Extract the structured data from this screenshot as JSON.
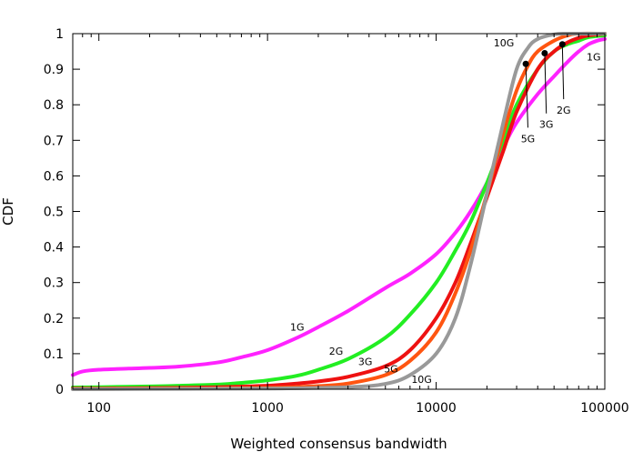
{
  "chart_data": {
    "type": "line",
    "xlabel": "Weighted consensus bandwidth",
    "ylabel": "CDF",
    "xscale": "log",
    "xlim": [
      70,
      100000
    ],
    "ylim": [
      0,
      1
    ],
    "x_ticks": [
      {
        "value": 100,
        "label": "100"
      },
      {
        "value": 1000,
        "label": "1000"
      },
      {
        "value": 10000,
        "label": "10000"
      },
      {
        "value": 100000,
        "label": "100000"
      }
    ],
    "y_ticks": [
      {
        "value": 0,
        "label": "0"
      },
      {
        "value": 0.1,
        "label": "0.1"
      },
      {
        "value": 0.2,
        "label": "0.2"
      },
      {
        "value": 0.3,
        "label": "0.3"
      },
      {
        "value": 0.4,
        "label": "0.4"
      },
      {
        "value": 0.5,
        "label": "0.5"
      },
      {
        "value": 0.6,
        "label": "0.6"
      },
      {
        "value": 0.7,
        "label": "0.7"
      },
      {
        "value": 0.8,
        "label": "0.8"
      },
      {
        "value": 0.9,
        "label": "0.9"
      },
      {
        "value": 1,
        "label": "1"
      }
    ],
    "grid": false,
    "series": [
      {
        "name": "1G",
        "color": "#ff22ff",
        "points": [
          [
            70,
            0.04
          ],
          [
            80,
            0.05
          ],
          [
            100,
            0.055
          ],
          [
            150,
            0.058
          ],
          [
            200,
            0.06
          ],
          [
            300,
            0.064
          ],
          [
            500,
            0.075
          ],
          [
            700,
            0.09
          ],
          [
            1000,
            0.11
          ],
          [
            1500,
            0.145
          ],
          [
            2000,
            0.175
          ],
          [
            3000,
            0.22
          ],
          [
            5000,
            0.285
          ],
          [
            7000,
            0.325
          ],
          [
            10000,
            0.38
          ],
          [
            13000,
            0.44
          ],
          [
            16000,
            0.5
          ],
          [
            20000,
            0.58
          ],
          [
            25000,
            0.68
          ],
          [
            30000,
            0.75
          ],
          [
            40000,
            0.83
          ],
          [
            50000,
            0.88
          ],
          [
            60000,
            0.92
          ],
          [
            70000,
            0.95
          ],
          [
            80000,
            0.97
          ],
          [
            90000,
            0.98
          ],
          [
            100000,
            0.985
          ]
        ]
      },
      {
        "name": "2G",
        "color": "#22ee22",
        "points": [
          [
            70,
            0.005
          ],
          [
            100,
            0.006
          ],
          [
            200,
            0.008
          ],
          [
            300,
            0.01
          ],
          [
            500,
            0.013
          ],
          [
            700,
            0.018
          ],
          [
            1000,
            0.025
          ],
          [
            1500,
            0.038
          ],
          [
            2000,
            0.055
          ],
          [
            3000,
            0.085
          ],
          [
            5000,
            0.145
          ],
          [
            7000,
            0.21
          ],
          [
            10000,
            0.3
          ],
          [
            13000,
            0.39
          ],
          [
            16000,
            0.47
          ],
          [
            20000,
            0.58
          ],
          [
            25000,
            0.7
          ],
          [
            30000,
            0.8
          ],
          [
            40000,
            0.9
          ],
          [
            50000,
            0.95
          ],
          [
            60000,
            0.97
          ],
          [
            70000,
            0.98
          ],
          [
            80000,
            0.99
          ],
          [
            100000,
            0.995
          ]
        ]
      },
      {
        "name": "3G",
        "color": "#ee1111",
        "points": [
          [
            70,
            0.002
          ],
          [
            100,
            0.002
          ],
          [
            200,
            0.003
          ],
          [
            500,
            0.006
          ],
          [
            1000,
            0.01
          ],
          [
            1500,
            0.016
          ],
          [
            2000,
            0.022
          ],
          [
            3000,
            0.035
          ],
          [
            5000,
            0.065
          ],
          [
            7000,
            0.11
          ],
          [
            10000,
            0.2
          ],
          [
            13000,
            0.3
          ],
          [
            16000,
            0.41
          ],
          [
            20000,
            0.54
          ],
          [
            25000,
            0.67
          ],
          [
            30000,
            0.78
          ],
          [
            40000,
            0.9
          ],
          [
            50000,
            0.95
          ],
          [
            60000,
            0.975
          ],
          [
            70000,
            0.988
          ],
          [
            80000,
            0.995
          ],
          [
            100000,
            1.0
          ]
        ]
      },
      {
        "name": "5G",
        "color": "#ff5511",
        "points": [
          [
            70,
            0.001
          ],
          [
            100,
            0.001
          ],
          [
            300,
            0.002
          ],
          [
            1000,
            0.004
          ],
          [
            2000,
            0.009
          ],
          [
            3000,
            0.016
          ],
          [
            5000,
            0.04
          ],
          [
            7000,
            0.08
          ],
          [
            10000,
            0.16
          ],
          [
            13000,
            0.27
          ],
          [
            16000,
            0.39
          ],
          [
            20000,
            0.55
          ],
          [
            25000,
            0.72
          ],
          [
            30000,
            0.84
          ],
          [
            35000,
            0.91
          ],
          [
            40000,
            0.95
          ],
          [
            50000,
            0.98
          ],
          [
            60000,
            0.995
          ],
          [
            70000,
            1.0
          ],
          [
            100000,
            1.0
          ]
        ]
      },
      {
        "name": "10G",
        "color": "#999999",
        "points": [
          [
            70,
            0.0
          ],
          [
            300,
            0.001
          ],
          [
            1000,
            0.002
          ],
          [
            3000,
            0.006
          ],
          [
            5000,
            0.015
          ],
          [
            7000,
            0.04
          ],
          [
            10000,
            0.1
          ],
          [
            13000,
            0.2
          ],
          [
            16000,
            0.35
          ],
          [
            20000,
            0.55
          ],
          [
            25000,
            0.75
          ],
          [
            30000,
            0.9
          ],
          [
            35000,
            0.96
          ],
          [
            40000,
            0.985
          ],
          [
            50000,
            0.998
          ],
          [
            60000,
            1.0
          ],
          [
            100000,
            1.0
          ]
        ]
      }
    ],
    "markers": [
      {
        "x": 34000,
        "y": 0.915
      },
      {
        "x": 44000,
        "y": 0.945
      },
      {
        "x": 56000,
        "y": 0.97
      }
    ],
    "annotations": [
      {
        "text": "10G",
        "x": 29000,
        "y": 0.975,
        "anchor": "end"
      },
      {
        "text": "1G",
        "x": 78000,
        "y": 0.935,
        "anchor": "start"
      },
      {
        "text": "2G",
        "x": 57000,
        "y": 0.785,
        "anchor": "middle",
        "leader_to": [
          56000,
          0.97
        ]
      },
      {
        "text": "3G",
        "x": 45000,
        "y": 0.745,
        "anchor": "middle",
        "leader_to": [
          44000,
          0.945
        ]
      },
      {
        "text": "5G",
        "x": 35000,
        "y": 0.705,
        "anchor": "middle",
        "leader_to": [
          34000,
          0.915
        ]
      },
      {
        "text": "1G",
        "x": 1500,
        "y": 0.175,
        "anchor": "middle"
      },
      {
        "text": "2G",
        "x": 2550,
        "y": 0.108,
        "anchor": "middle"
      },
      {
        "text": "3G",
        "x": 3800,
        "y": 0.078,
        "anchor": "middle"
      },
      {
        "text": "5G",
        "x": 5400,
        "y": 0.058,
        "anchor": "middle"
      },
      {
        "text": "10G",
        "x": 8200,
        "y": 0.028,
        "anchor": "middle"
      }
    ]
  }
}
